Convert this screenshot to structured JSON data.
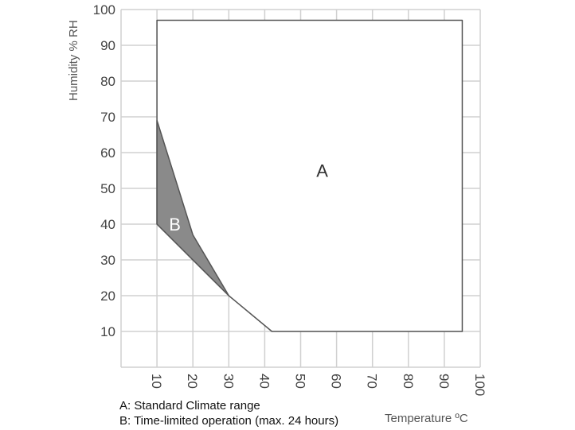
{
  "chart_data": {
    "type": "area",
    "xlabel": "Temperature ºC",
    "ylabel": "Humidity % RH",
    "x_ticks": [
      10,
      20,
      30,
      40,
      50,
      60,
      70,
      80,
      90,
      100
    ],
    "y_ticks": [
      10,
      20,
      30,
      40,
      50,
      60,
      70,
      80,
      90,
      100
    ],
    "xlim": [
      0,
      100
    ],
    "ylim": [
      0,
      100
    ],
    "grid": true,
    "regions": [
      {
        "label": "A",
        "color": "#ffffff",
        "points": [
          [
            10,
            97
          ],
          [
            95,
            97
          ],
          [
            95,
            10
          ],
          [
            42,
            10
          ],
          [
            36,
            15
          ],
          [
            30,
            20
          ],
          [
            10,
            40
          ]
        ]
      },
      {
        "label": "B",
        "color": "#8a8a8a",
        "points": [
          [
            10,
            69
          ],
          [
            20,
            37
          ],
          [
            30,
            20
          ],
          [
            10,
            40
          ]
        ]
      }
    ],
    "legend": [
      "A: Standard Climate range",
      "B: Time-limited operation (max. 24 hours)"
    ]
  },
  "colors": {
    "grid": "#d0d0d0",
    "outline": "#555555",
    "region_b_fill": "#8a8a8a"
  }
}
